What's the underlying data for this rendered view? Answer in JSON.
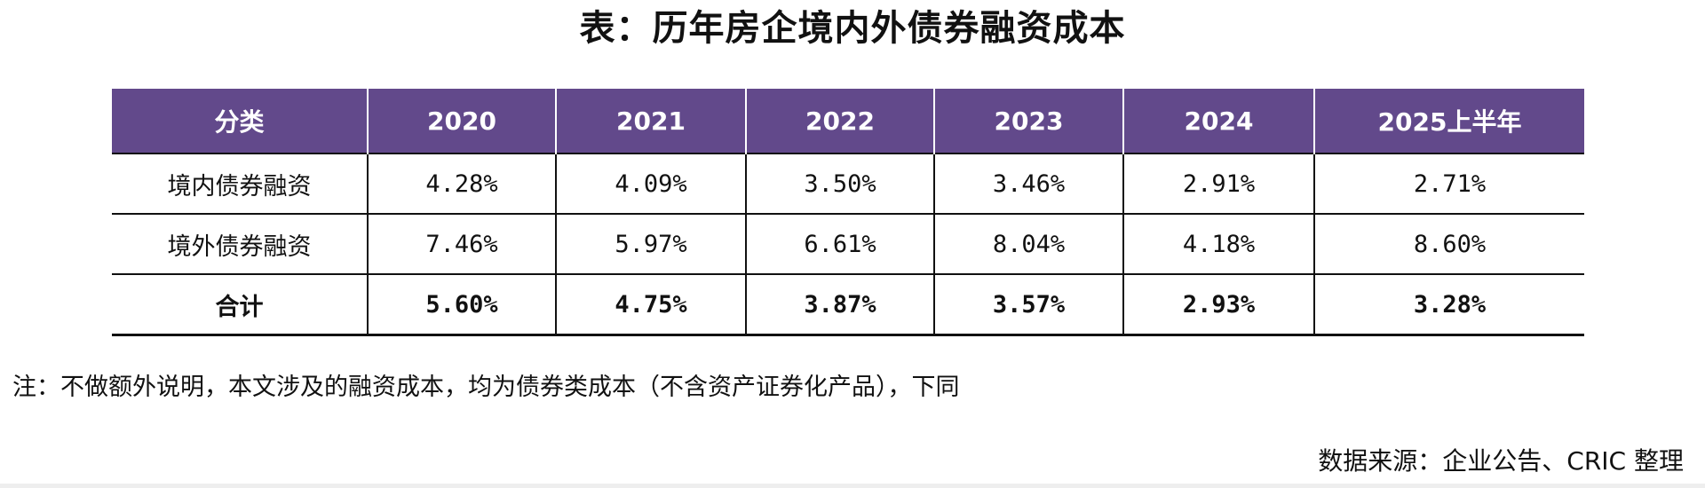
{
  "title": "表：历年房企境内外债券融资成本",
  "table": {
    "headers": [
      "分类",
      "2020",
      "2021",
      "2022",
      "2023",
      "2024",
      "2025上半年"
    ],
    "rows": [
      {
        "label": "境内债券融资",
        "values": [
          "4.28%",
          "4.09%",
          "3.50%",
          "3.46%",
          "2.91%",
          "2.71%"
        ]
      },
      {
        "label": "境外债券融资",
        "values": [
          "7.46%",
          "5.97%",
          "6.61%",
          "8.04%",
          "4.18%",
          "8.60%"
        ]
      },
      {
        "label": "合计",
        "values": [
          "5.60%",
          "4.75%",
          "3.87%",
          "3.57%",
          "2.93%",
          "3.28%"
        ]
      }
    ],
    "colors": {
      "header_bg": "#62498b",
      "header_text": "#ffffff"
    }
  },
  "note": "注：不做额外说明，本文涉及的融资成本，均为债券类成本（不含资产证券化产品），下同",
  "source": "数据来源：企业公告、CRIC 整理"
}
